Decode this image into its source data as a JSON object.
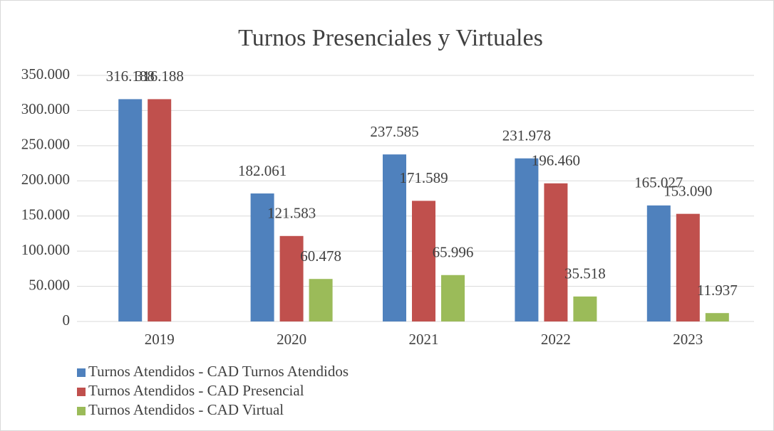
{
  "chart_data": {
    "type": "bar",
    "title": "Turnos Presenciales y Virtuales",
    "categories": [
      "2019",
      "2020",
      "2021",
      "2022",
      "2023"
    ],
    "series": [
      {
        "name": "Turnos Atendidos - CAD Turnos Atendidos",
        "color": "#4f81bd",
        "values": [
          316188,
          182061,
          237585,
          231978,
          165027
        ],
        "value_labels": [
          "316.188",
          "182.061",
          "237.585",
          "231.978",
          "165.027"
        ]
      },
      {
        "name": "Turnos Atendidos - CAD Presencial",
        "color": "#c0504d",
        "values": [
          316188,
          121583,
          171589,
          196460,
          153090
        ],
        "value_labels": [
          "316.188",
          "121.583",
          "171.589",
          "196.460",
          "153.090"
        ]
      },
      {
        "name": "Turnos Atendidos - CAD Virtual",
        "color": "#9bbb59",
        "values": [
          null,
          60478,
          65996,
          35518,
          11937
        ],
        "value_labels": [
          null,
          "60.478",
          "65.996",
          "35.518",
          "11.937"
        ]
      }
    ],
    "ylim": [
      0,
      350000
    ],
    "yticks": [
      0,
      {
        "value": 50000,
        "label": "50.000"
      },
      {
        "value": 100000,
        "label": "100.000"
      },
      {
        "value": 150000,
        "label": "150.000"
      },
      {
        "value": 200000,
        "label": "200.000"
      },
      {
        "value": 250000,
        "label": "250.000"
      },
      {
        "value": 300000,
        "label": "300.000"
      },
      {
        "value": 350000,
        "label": "350.000"
      }
    ],
    "grid": true,
    "legend": "bottom"
  }
}
